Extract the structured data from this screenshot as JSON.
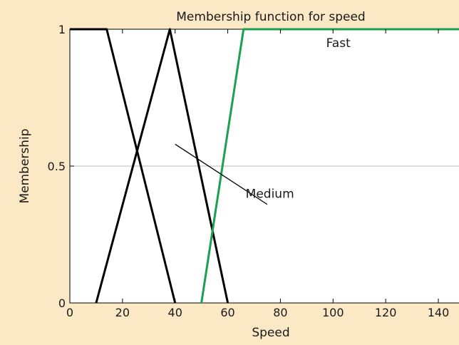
{
  "chart_data": {
    "type": "line",
    "title": "Membership function for speed",
    "xlabel": "Speed",
    "ylabel": "Membership",
    "xlim": [
      0,
      153
    ],
    "ylim": [
      0,
      1
    ],
    "x_ticks": [
      0,
      20,
      40,
      60,
      80,
      100,
      120,
      140
    ],
    "y_ticks": [
      0,
      0.5,
      1
    ],
    "y_tick_labels": [
      "0",
      "0.5",
      "1"
    ],
    "gridlines_y": [
      0.5
    ],
    "series": [
      {
        "points": [
          [
            0,
            1
          ],
          [
            14,
            1
          ],
          [
            40,
            0
          ]
        ],
        "color": "#000000"
      },
      {
        "points": [
          [
            10,
            0
          ],
          [
            38,
            1
          ],
          [
            60,
            0
          ]
        ],
        "color": "#000000"
      },
      {
        "name": "Fast",
        "points": [
          [
            50,
            0
          ],
          [
            66,
            1
          ],
          [
            153,
            1
          ]
        ],
        "color": "#1aa050"
      }
    ],
    "annotations": [
      {
        "text": "Fast",
        "x": 102,
        "y": 0.95
      },
      {
        "text": "Medium",
        "x": 76,
        "y": 0.4,
        "arrow_from": [
          75,
          0.36
        ],
        "arrow_to": [
          40,
          0.58
        ]
      }
    ]
  }
}
